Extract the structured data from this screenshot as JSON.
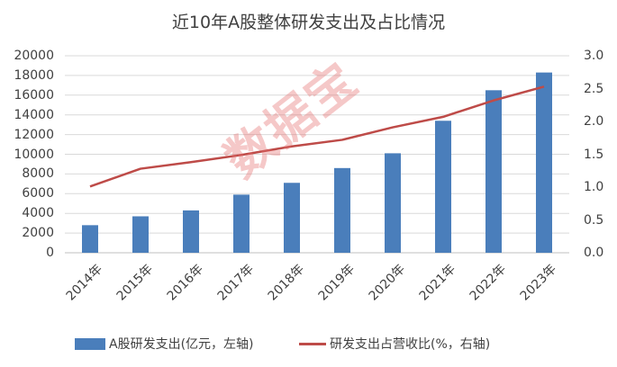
{
  "chart_data": {
    "type": "bar+line",
    "title": "近10年A股整体研发支出及占比情况",
    "categories": [
      "2014年",
      "2015年",
      "2016年",
      "2017年",
      "2018年",
      "2019年",
      "2020年",
      "2021年",
      "2022年",
      "2023年"
    ],
    "series": [
      {
        "name": "A股研发支出(亿元，左轴)",
        "type": "bar",
        "axis": "left",
        "color": "#4a7ebb",
        "values": [
          2800,
          3700,
          4300,
          5900,
          7100,
          8600,
          10100,
          13400,
          16500,
          18300
        ]
      },
      {
        "name": "研发支出占营收比(%，右轴)",
        "type": "line",
        "axis": "right",
        "color": "#be4b48",
        "values": [
          1.01,
          1.28,
          1.38,
          1.49,
          1.62,
          1.72,
          1.91,
          2.07,
          2.32,
          2.53
        ]
      }
    ],
    "left_axis": {
      "ylim": [
        0,
        20000
      ],
      "ticks": [
        "0",
        "2000",
        "4000",
        "6000",
        "8000",
        "10000",
        "12000",
        "14000",
        "16000",
        "18000",
        "20000"
      ]
    },
    "right_axis": {
      "ylim": [
        0,
        3.0
      ],
      "ticks": [
        "0.0",
        "0.5",
        "1.0",
        "1.5",
        "2.0",
        "2.5",
        "3.0"
      ]
    },
    "grid": true,
    "legend": "bottom"
  },
  "watermark": "数据宝"
}
